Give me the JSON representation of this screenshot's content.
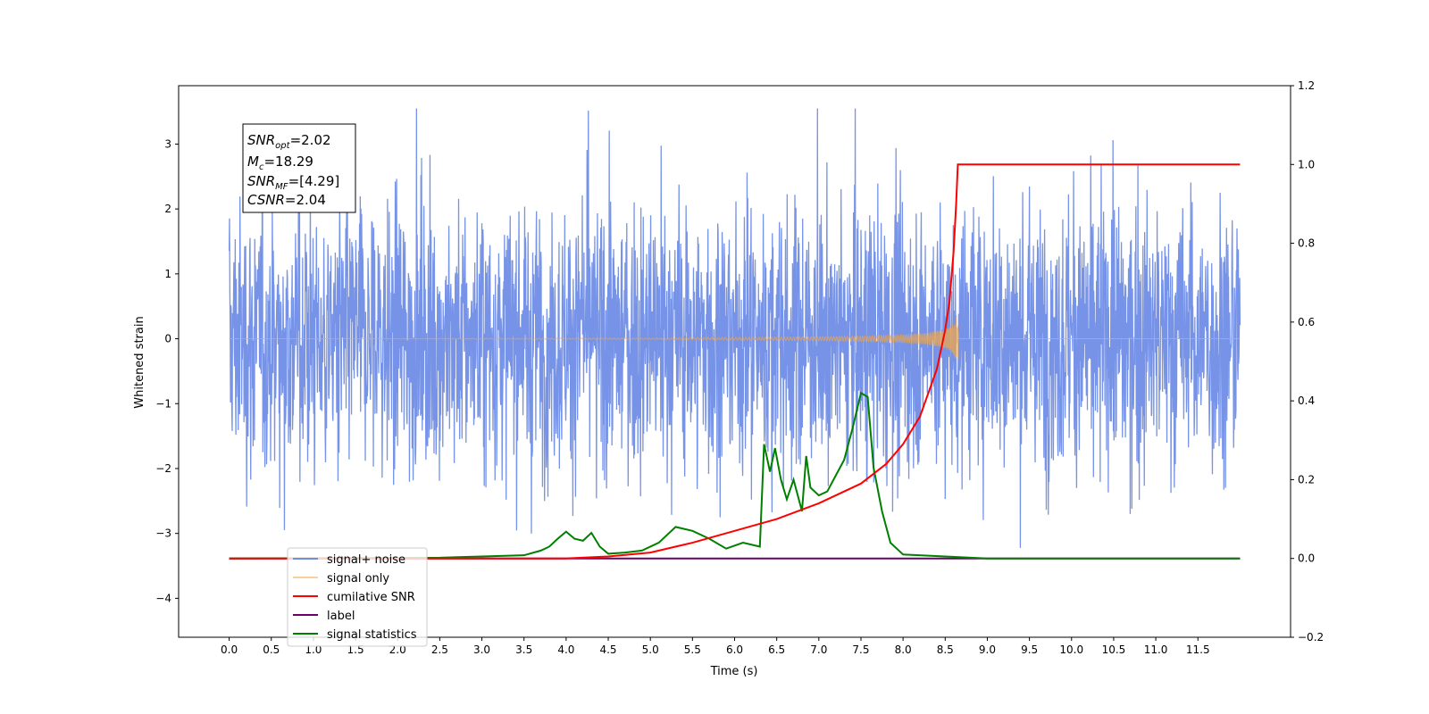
{
  "chart_data": {
    "type": "line",
    "xlabel": "Time (s)",
    "ylabel": "Whitened strain",
    "xlim": [
      -0.6,
      12.6
    ],
    "ylim": [
      -4.6,
      3.9
    ],
    "y2lim": [
      -0.2,
      1.2
    ],
    "grid": false,
    "x_ticks": [
      "0.0",
      "0.5",
      "1.0",
      "1.5",
      "2.0",
      "2.5",
      "3.0",
      "3.5",
      "4.0",
      "4.5",
      "5.0",
      "5.5",
      "6.0",
      "6.5",
      "7.0",
      "7.5",
      "8.0",
      "8.5",
      "9.0",
      "9.5",
      "10.0",
      "10.5",
      "11.0",
      "11.5"
    ],
    "y_ticks": [
      "3",
      "2",
      "1",
      "0",
      "−1",
      "−2",
      "−3",
      "−4"
    ],
    "y2_ticks": [
      "1.2",
      "1.0",
      "0.8",
      "0.6",
      "0.4",
      "0.2",
      "0.0",
      "−0.2"
    ],
    "legend_position": "lower-left",
    "annotations": {
      "snr_opt": {
        "sym": "SNR",
        "sub": "opt",
        "value": "=2.02"
      },
      "mc": {
        "sym": "M",
        "sub": "c",
        "value": "=18.29"
      },
      "snr_mf": {
        "sym": "SNR",
        "sub": "MF",
        "value": "=[4.29]"
      },
      "csnr": {
        "sym": "CSNR",
        "sub": "",
        "value": "=2.04"
      }
    },
    "series": [
      {
        "name": "signal+ noise",
        "color": "#6f8de6",
        "axis": "left",
        "x_range": [
          0.0,
          12.0
        ],
        "amplitude_typical": 1.2,
        "min": -4.1,
        "max": 3.55
      },
      {
        "name": "signal only",
        "color": "#f5a742",
        "axis": "left",
        "x": [
          0.0,
          5.0,
          6.0,
          7.0,
          7.5,
          8.0,
          8.3,
          8.5,
          8.6,
          8.65,
          8.66,
          12.0
        ],
        "envelope": [
          0.0,
          0.01,
          0.02,
          0.03,
          0.04,
          0.06,
          0.09,
          0.15,
          0.25,
          0.4,
          0.0,
          0.0
        ]
      },
      {
        "name": "cumilative SNR",
        "color": "#ff0000",
        "axis": "right",
        "x": [
          4.0,
          4.5,
          5.0,
          5.5,
          6.0,
          6.5,
          7.0,
          7.5,
          7.8,
          8.0,
          8.2,
          8.4,
          8.5,
          8.55,
          8.6,
          8.63,
          8.65,
          12.0
        ],
        "values": [
          0.0,
          0.005,
          0.015,
          0.04,
          0.07,
          0.1,
          0.14,
          0.19,
          0.24,
          0.29,
          0.36,
          0.48,
          0.58,
          0.65,
          0.78,
          0.9,
          1.0,
          1.0
        ]
      },
      {
        "name": "label",
        "color": "#6b006b",
        "axis": "right",
        "x": [
          0.0,
          12.0
        ],
        "values": [
          0.0,
          0.0
        ]
      },
      {
        "name": "signal statistics",
        "color": "#008000",
        "axis": "right",
        "x": [
          0.0,
          2.5,
          3.0,
          3.5,
          3.7,
          3.8,
          3.9,
          4.0,
          4.1,
          4.2,
          4.3,
          4.4,
          4.5,
          4.7,
          4.9,
          5.1,
          5.3,
          5.5,
          5.7,
          5.9,
          6.1,
          6.3,
          6.35,
          6.42,
          6.48,
          6.55,
          6.62,
          6.7,
          6.8,
          6.85,
          6.9,
          7.0,
          7.1,
          7.2,
          7.3,
          7.4,
          7.5,
          7.58,
          7.65,
          7.75,
          7.85,
          8.0,
          8.5,
          9.0,
          12.0
        ],
        "values": [
          0.0,
          0.002,
          0.005,
          0.008,
          0.02,
          0.03,
          0.05,
          0.068,
          0.05,
          0.045,
          0.065,
          0.03,
          0.012,
          0.015,
          0.02,
          0.04,
          0.08,
          0.07,
          0.05,
          0.025,
          0.04,
          0.03,
          0.29,
          0.22,
          0.28,
          0.2,
          0.15,
          0.2,
          0.12,
          0.26,
          0.18,
          0.16,
          0.17,
          0.21,
          0.25,
          0.33,
          0.42,
          0.41,
          0.23,
          0.12,
          0.04,
          0.01,
          0.005,
          0.0,
          0.0
        ]
      }
    ]
  }
}
